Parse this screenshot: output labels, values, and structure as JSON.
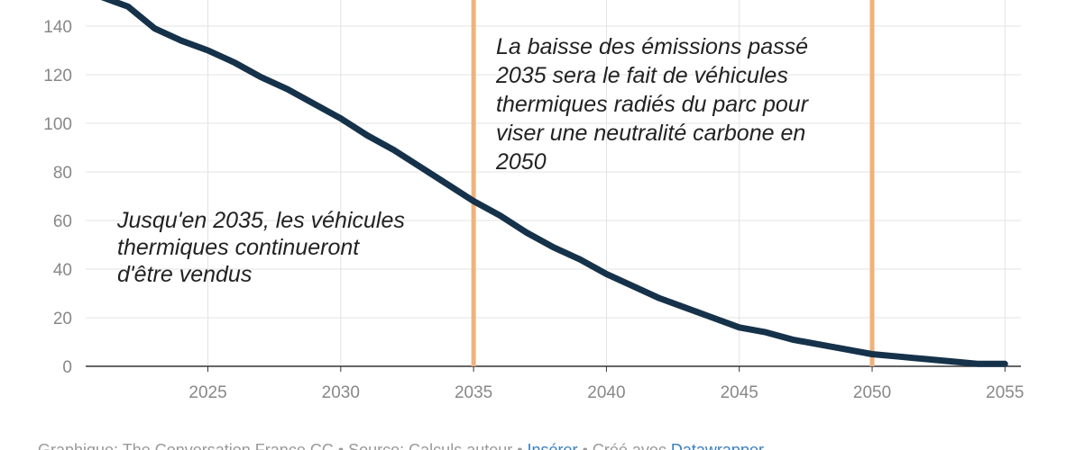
{
  "chart_data": {
    "type": "line",
    "x": [
      2021,
      2022,
      2023,
      2024,
      2025,
      2026,
      2027,
      2028,
      2029,
      2030,
      2031,
      2032,
      2033,
      2034,
      2035,
      2036,
      2037,
      2038,
      2039,
      2040,
      2041,
      2042,
      2043,
      2044,
      2045,
      2046,
      2047,
      2048,
      2049,
      2050,
      2051,
      2052,
      2053,
      2054,
      2055
    ],
    "values": [
      152,
      148,
      139,
      134,
      130,
      125,
      119,
      114,
      108,
      102,
      95,
      89,
      82,
      75,
      68,
      62,
      55,
      49,
      44,
      38,
      33,
      28,
      24,
      20,
      16,
      14,
      11,
      9,
      7,
      5,
      4,
      3,
      2,
      1,
      1
    ],
    "color": "#15324a",
    "xlim": [
      2020.4,
      2055.6
    ],
    "xticks": [
      2025,
      2030,
      2035,
      2040,
      2045,
      2050,
      2055
    ],
    "ylim": [
      0,
      150
    ],
    "yticks": [
      0,
      20,
      40,
      60,
      80,
      100,
      120,
      140
    ],
    "grid": true,
    "reference_lines": [
      2035,
      2050
    ],
    "reference_color": "#f0b27a",
    "annotations": [
      [
        "Jusqu'en 2035, les véhicules",
        "thermiques continueront",
        "d'être vendus"
      ],
      [
        "La baisse des émissions passé",
        "2035 sera le fait de véhicules",
        "thermiques radiés du parc pour",
        "viser une neutralité carbone en",
        "2050"
      ]
    ],
    "footer": [
      "Graphique: The Conversation France CC • Source: Calculs auteur • ",
      "Insérer",
      " • Créé avec ",
      "Datawrapper"
    ]
  }
}
